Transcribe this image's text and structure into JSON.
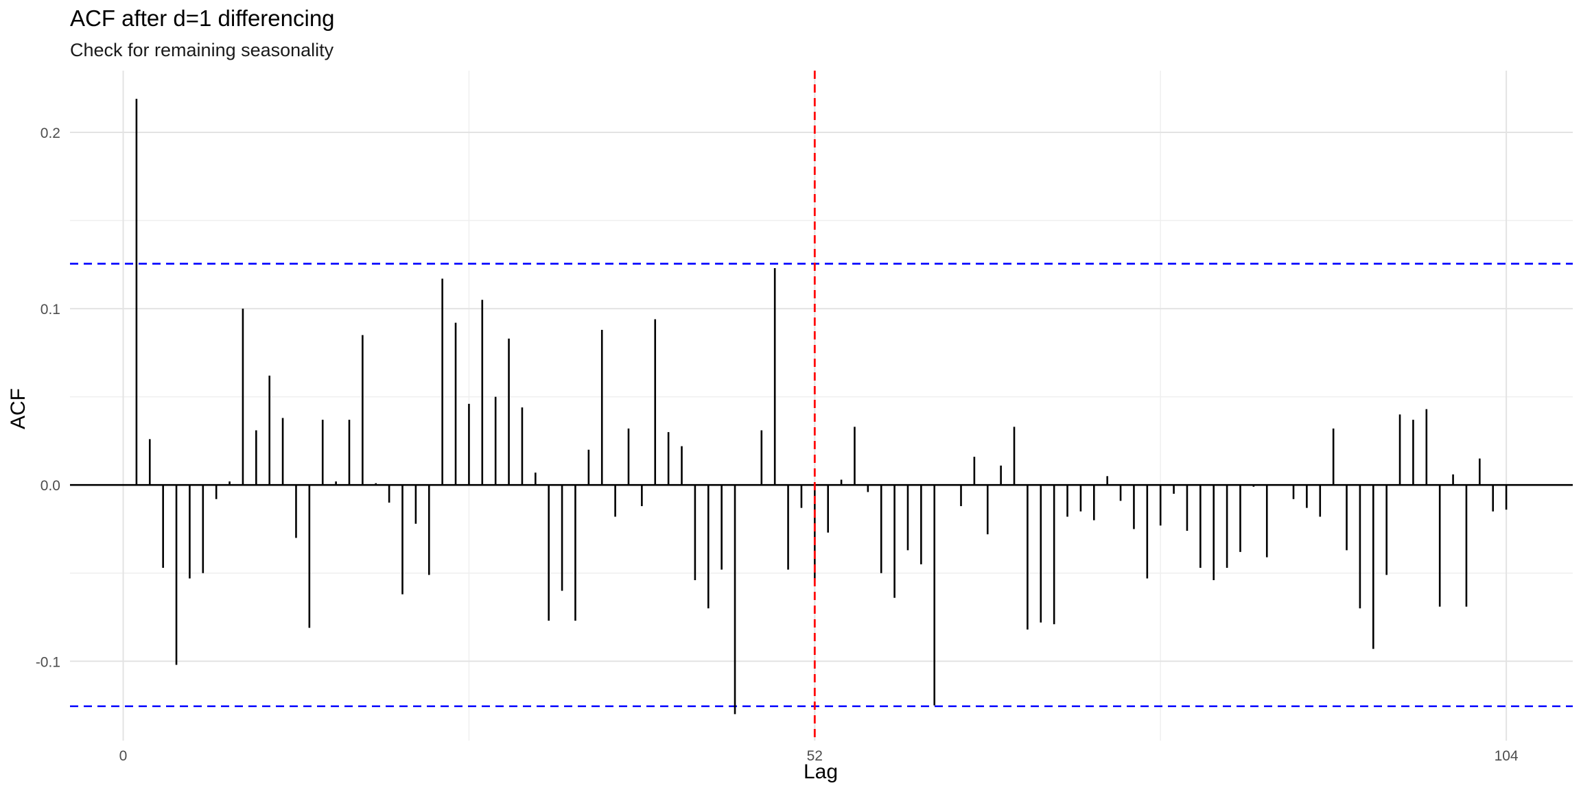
{
  "chart_data": {
    "type": "bar",
    "subtype": "acf-stem",
    "title": "ACF after d=1 differencing",
    "subtitle": "Check for remaining seasonality",
    "xlabel": "Lag",
    "ylabel": "ACF",
    "xlim": [
      -4,
      109
    ],
    "ylim": [
      -0.145,
      0.235
    ],
    "x_ticks": [
      0,
      52,
      104
    ],
    "y_ticks": [
      -0.1,
      0.0,
      0.1,
      0.2
    ],
    "y_tick_labels": [
      "-0.1",
      "0.0",
      "0.1",
      "0.2"
    ],
    "grid": true,
    "confidence_bound": 0.1255,
    "confidence_color": "#0000ff",
    "seasonal_marker_lag": 52,
    "seasonal_marker_color": "#ff0000",
    "lags": [
      1,
      2,
      3,
      4,
      5,
      6,
      7,
      8,
      9,
      10,
      11,
      12,
      13,
      14,
      15,
      16,
      17,
      18,
      19,
      20,
      21,
      22,
      23,
      24,
      25,
      26,
      27,
      28,
      29,
      30,
      31,
      32,
      33,
      34,
      35,
      36,
      37,
      38,
      39,
      40,
      41,
      42,
      43,
      44,
      45,
      46,
      47,
      48,
      49,
      50,
      51,
      52,
      53,
      54,
      55,
      56,
      57,
      58,
      59,
      60,
      61,
      62,
      63,
      64,
      65,
      66,
      67,
      68,
      69,
      70,
      71,
      72,
      73,
      74,
      75,
      76,
      77,
      78,
      79,
      80,
      81,
      82,
      83,
      84,
      85,
      86,
      87,
      88,
      89,
      90,
      91,
      92,
      93,
      94,
      95,
      96,
      97,
      98,
      99,
      100,
      101,
      102,
      103,
      104
    ],
    "values": [
      0.219,
      0.026,
      -0.047,
      -0.102,
      -0.053,
      -0.05,
      -0.008,
      0.002,
      0.1,
      0.031,
      0.062,
      0.038,
      -0.03,
      -0.081,
      0.037,
      0.002,
      0.037,
      0.085,
      0.001,
      -0.01,
      -0.062,
      -0.022,
      -0.051,
      0.117,
      0.092,
      0.046,
      0.105,
      0.05,
      0.083,
      0.044,
      0.007,
      -0.077,
      -0.06,
      -0.077,
      0.02,
      0.088,
      -0.018,
      0.032,
      -0.012,
      0.094,
      0.03,
      0.022,
      -0.054,
      -0.07,
      -0.048,
      -0.13,
      0.0,
      0.031,
      0.123,
      -0.048,
      -0.013,
      -0.053,
      -0.027,
      0.003,
      0.033,
      -0.004,
      -0.05,
      -0.064,
      -0.037,
      -0.045,
      -0.125,
      0.0,
      -0.012,
      0.016,
      -0.028,
      0.011,
      0.033,
      -0.082,
      -0.078,
      -0.079,
      -0.018,
      -0.015,
      -0.02,
      0.005,
      -0.009,
      -0.025,
      -0.053,
      -0.023,
      -0.005,
      -0.026,
      -0.047,
      -0.054,
      -0.047,
      -0.038,
      -0.001,
      -0.041,
      0.0,
      -0.008,
      -0.013,
      -0.018,
      0.032,
      -0.037,
      -0.07,
      -0.093,
      -0.051,
      0.04,
      0.037,
      0.043,
      -0.069,
      0.006,
      -0.069,
      0.015,
      -0.015,
      -0.014
    ],
    "bar_color": "#000000"
  }
}
